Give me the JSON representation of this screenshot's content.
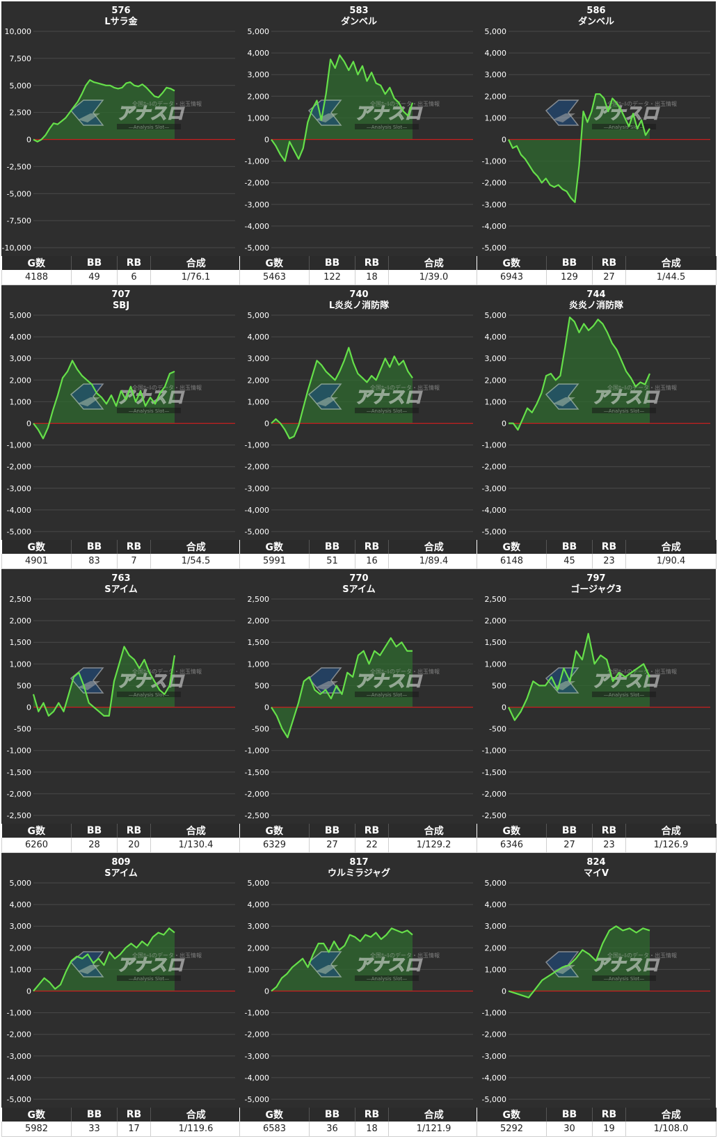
{
  "colors": {
    "background": "#2e2e2e",
    "line": "#66e04a",
    "fill": "#2f6a2f",
    "zero_line": "#c81e1e",
    "grid": "#4a4a4a",
    "text": "#ffffff"
  },
  "watermark": {
    "main": "アナスロ",
    "sub": "—Analysis Slot—",
    "top": "全国ﾎｰﾙのデータ・出玉情報"
  },
  "stat_headers": [
    "G数",
    "BB",
    "RB",
    "合成"
  ],
  "chart_data": [
    {
      "type": "area",
      "title": "576",
      "subtitle": "Lサラ金",
      "ylim": [
        -10000,
        10000
      ],
      "yticks": [
        "10,000",
        "7,500",
        "5,000",
        "2,500",
        "0",
        "-2,500",
        "-5,000",
        "-7,500",
        "-10,000"
      ],
      "stats": {
        "g": "4188",
        "bb": "49",
        "rb": "6",
        "ratio": "1/76.1"
      },
      "values": [
        0,
        -200,
        0,
        400,
        1000,
        1500,
        1400,
        1700,
        2000,
        2500,
        3000,
        3500,
        4200,
        5000,
        5500,
        5300,
        5200,
        5100,
        5000,
        5000,
        4800,
        4700,
        4800,
        5200,
        5300,
        5000,
        4900,
        5100,
        4800,
        4400,
        4000,
        3900,
        4300,
        4800,
        4700,
        4500
      ]
    },
    {
      "type": "area",
      "title": "583",
      "subtitle": "ダンベル",
      "ylim": [
        -5000,
        5000
      ],
      "yticks": [
        "5,000",
        "4,000",
        "3,000",
        "2,000",
        "1,000",
        "0",
        "-1,000",
        "-2,000",
        "-3,000",
        "-4,000",
        "-5,000"
      ],
      "stats": {
        "g": "5463",
        "bb": "122",
        "rb": "18",
        "ratio": "1/39.0"
      },
      "values": [
        0,
        -300,
        -700,
        -1000,
        -100,
        -500,
        -900,
        -400,
        800,
        1400,
        1800,
        900,
        2100,
        3700,
        3300,
        3900,
        3600,
        3200,
        3600,
        3000,
        3400,
        2700,
        3100,
        2600,
        2500,
        2100,
        2400,
        1900,
        1700,
        1300,
        1100,
        1700
      ]
    },
    {
      "type": "area",
      "title": "586",
      "subtitle": "ダンベル",
      "ylim": [
        -5000,
        5000
      ],
      "yticks": [
        "5,000",
        "4,000",
        "3,000",
        "2,000",
        "1,000",
        "0",
        "-1,000",
        "-2,000",
        "-3,000",
        "-4,000",
        "-5,000"
      ],
      "stats": {
        "g": "6943",
        "bb": "129",
        "rb": "27",
        "ratio": "1/44.5"
      },
      "values": [
        0,
        -400,
        -300,
        -700,
        -900,
        -1200,
        -1500,
        -1700,
        -2000,
        -1800,
        -2100,
        -2200,
        -2100,
        -2300,
        -2400,
        -2700,
        -2900,
        -1200,
        1300,
        800,
        1300,
        2100,
        2100,
        1900,
        1300,
        1900,
        1700,
        1400,
        1000,
        600,
        1200,
        500,
        900,
        200,
        500
      ]
    },
    {
      "type": "area",
      "title": "707",
      "subtitle": "SBJ",
      "ylim": [
        -5000,
        5000
      ],
      "yticks": [
        "5,000",
        "4,000",
        "3,000",
        "2,000",
        "1,000",
        "0",
        "-1,000",
        "-2,000",
        "-3,000",
        "-4,000",
        "-5,000"
      ],
      "stats": {
        "g": "4901",
        "bb": "83",
        "rb": "7",
        "ratio": "1/54.5"
      },
      "values": [
        0,
        -300,
        -700,
        -200,
        600,
        1300,
        2100,
        2400,
        2900,
        2500,
        2200,
        2000,
        1800,
        1400,
        1200,
        900,
        1300,
        800,
        1500,
        1100,
        1700,
        1000,
        1500,
        800,
        1200,
        900,
        1400,
        1700,
        2300,
        2400
      ]
    },
    {
      "type": "area",
      "title": "740",
      "subtitle": "L炎炎ノ消防隊",
      "ylim": [
        -5000,
        5000
      ],
      "yticks": [
        "5,000",
        "4,000",
        "3,000",
        "2,000",
        "1,000",
        "0",
        "-1,000",
        "-2,000",
        "-3,000",
        "-4,000",
        "-5,000"
      ],
      "stats": {
        "g": "5991",
        "bb": "51",
        "rb": "16",
        "ratio": "1/89.4"
      },
      "values": [
        0,
        200,
        0,
        -300,
        -700,
        -600,
        -100,
        700,
        1500,
        2200,
        2900,
        2700,
        2400,
        2200,
        2000,
        2400,
        2900,
        3500,
        2800,
        2300,
        2100,
        1900,
        2200,
        2000,
        2500,
        3000,
        2600,
        3100,
        2700,
        2900,
        2400,
        2100
      ]
    },
    {
      "type": "area",
      "title": "744",
      "subtitle": "炎炎ノ消防隊",
      "ylim": [
        -5000,
        5000
      ],
      "yticks": [
        "5,000",
        "4,000",
        "3,000",
        "2,000",
        "1,000",
        "0",
        "-1,000",
        "-2,000",
        "-3,000",
        "-4,000",
        "-5,000"
      ],
      "stats": {
        "g": "6148",
        "bb": "45",
        "rb": "23",
        "ratio": "1/90.4"
      },
      "values": [
        0,
        0,
        -300,
        200,
        700,
        500,
        900,
        1400,
        2200,
        2300,
        2000,
        2200,
        3500,
        4900,
        4700,
        4200,
        4600,
        4300,
        4500,
        4800,
        4600,
        4200,
        3700,
        3400,
        2900,
        2400,
        2100,
        1700,
        1900,
        1800,
        2300
      ]
    },
    {
      "type": "area",
      "title": "763",
      "subtitle": "Sアイム",
      "ylim": [
        -2500,
        2500
      ],
      "yticks": [
        "2,500",
        "2,000",
        "1,500",
        "1,000",
        "500",
        "0",
        "-500",
        "-1,000",
        "-1,500",
        "-2,000",
        "-2,500"
      ],
      "stats": {
        "g": "6260",
        "bb": "28",
        "rb": "20",
        "ratio": "1/130.4"
      },
      "values": [
        300,
        -100,
        100,
        -200,
        -100,
        100,
        -100,
        300,
        700,
        800,
        500,
        100,
        0,
        -100,
        -200,
        -200,
        600,
        1000,
        1400,
        1200,
        1100,
        900,
        1100,
        800,
        600,
        400,
        300,
        500,
        1200
      ]
    },
    {
      "type": "area",
      "title": "770",
      "subtitle": "Sアイム",
      "ylim": [
        -2500,
        2500
      ],
      "yticks": [
        "2,500",
        "2,000",
        "1,500",
        "1,000",
        "500",
        "0",
        "-500",
        "-1,000",
        "-1,500",
        "-2,000",
        "-2,500"
      ],
      "stats": {
        "g": "6329",
        "bb": "27",
        "rb": "22",
        "ratio": "1/129.2"
      },
      "values": [
        0,
        -200,
        -500,
        -700,
        -300,
        100,
        600,
        700,
        400,
        300,
        400,
        200,
        500,
        300,
        800,
        700,
        1200,
        1300,
        1000,
        1300,
        1200,
        1400,
        1600,
        1400,
        1500,
        1300,
        1300
      ]
    },
    {
      "type": "area",
      "title": "797",
      "subtitle": "ゴージャグ3",
      "ylim": [
        -2500,
        2500
      ],
      "yticks": [
        "2,500",
        "2,000",
        "1,500",
        "1,000",
        "500",
        "0",
        "-500",
        "-1,000",
        "-1,500",
        "-2,000",
        "-2,500"
      ],
      "stats": {
        "g": "6346",
        "bb": "27",
        "rb": "23",
        "ratio": "1/126.9"
      },
      "values": [
        0,
        -300,
        -100,
        200,
        600,
        500,
        500,
        700,
        400,
        900,
        600,
        1300,
        1100,
        1700,
        1000,
        1200,
        1100,
        600,
        800,
        700,
        800,
        900,
        1000,
        700
      ]
    },
    {
      "type": "area",
      "title": "809",
      "subtitle": "Sアイム",
      "ylim": [
        -5000,
        5000
      ],
      "yticks": [
        "5,000",
        "4,000",
        "3,000",
        "2,000",
        "1,000",
        "0",
        "-1,000",
        "-2,000",
        "-3,000",
        "-4,000",
        "-5,000"
      ],
      "stats": {
        "g": "5982",
        "bb": "33",
        "rb": "17",
        "ratio": "1/119.6"
      },
      "values": [
        0,
        300,
        600,
        400,
        100,
        300,
        900,
        1400,
        1600,
        1500,
        1700,
        1300,
        1500,
        1200,
        1800,
        1500,
        1700,
        2000,
        2200,
        2000,
        2300,
        2100,
        2500,
        2700,
        2600,
        2900,
        2700
      ]
    },
    {
      "type": "area",
      "title": "817",
      "subtitle": "ウルミラジャグ",
      "ylim": [
        -5000,
        5000
      ],
      "yticks": [
        "5,000",
        "4,000",
        "3,000",
        "2,000",
        "1,000",
        "0",
        "-1,000",
        "-2,000",
        "-3,000",
        "-4,000",
        "-5,000"
      ],
      "stats": {
        "g": "6583",
        "bb": "36",
        "rb": "18",
        "ratio": "1/121.9"
      },
      "values": [
        0,
        200,
        600,
        800,
        1100,
        1300,
        1500,
        1100,
        1700,
        2200,
        2200,
        1800,
        2300,
        1900,
        2100,
        2600,
        2500,
        2300,
        2600,
        2500,
        2700,
        2400,
        2600,
        2900,
        2800,
        2700,
        2800,
        2600
      ]
    },
    {
      "type": "area",
      "title": "824",
      "subtitle": "マイV",
      "ylim": [
        -5000,
        5000
      ],
      "yticks": [
        "5,000",
        "4,000",
        "3,000",
        "2,000",
        "1,000",
        "0",
        "-1,000",
        "-2,000",
        "-3,000",
        "-4,000",
        "-5,000"
      ],
      "stats": {
        "g": "5292",
        "bb": "30",
        "rb": "19",
        "ratio": "1/108.0"
      },
      "values": [
        0,
        -100,
        -200,
        -300,
        100,
        500,
        700,
        900,
        1100,
        1200,
        1500,
        1900,
        1700,
        1400,
        2200,
        2800,
        3000,
        2800,
        2900,
        2700,
        2900,
        2800
      ]
    }
  ]
}
